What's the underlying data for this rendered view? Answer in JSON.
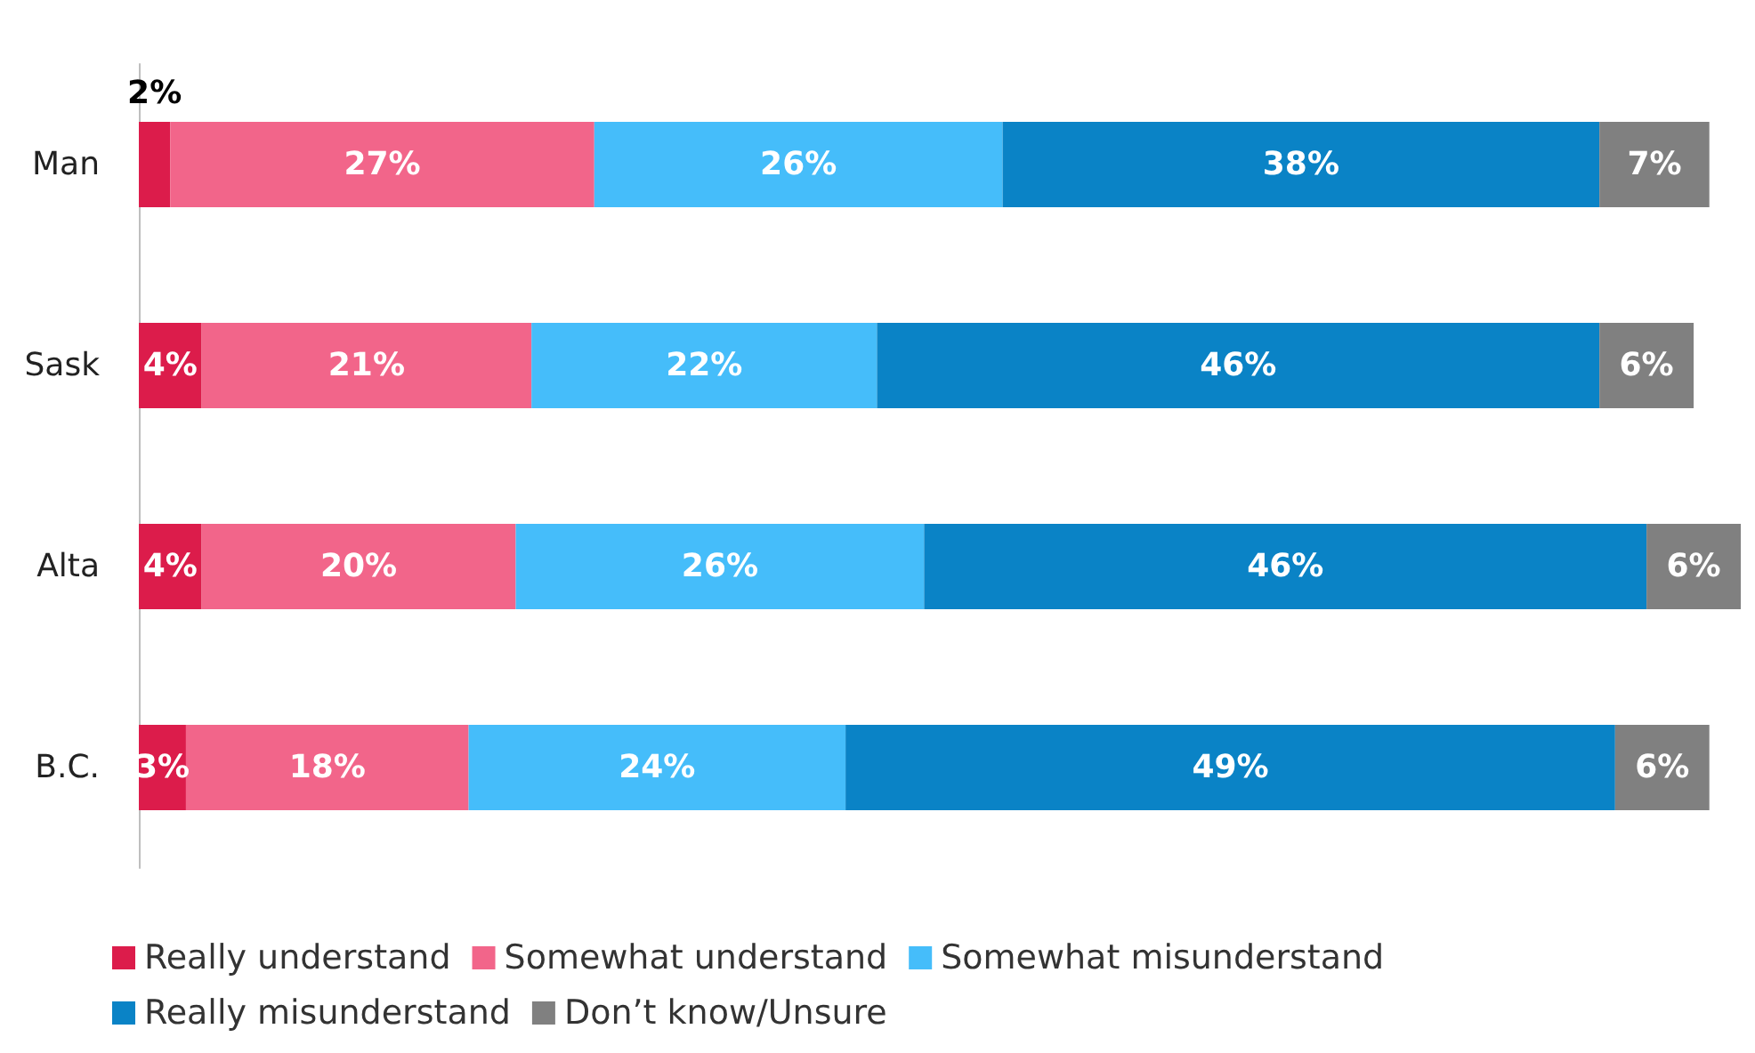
{
  "chart_data": {
    "type": "bar",
    "orientation": "horizontal",
    "stacked": true,
    "categories": [
      "Man",
      "Sask",
      "Alta",
      "B.C."
    ],
    "xlim": [
      0,
      102
    ],
    "tick_labels": "y",
    "legend": "bottom",
    "series": [
      {
        "name": "Really understand",
        "color": "#dc1c4b",
        "values": [
          2,
          4,
          4,
          3
        ],
        "value_labels": [
          "2%",
          "4%",
          "4%",
          "3%"
        ]
      },
      {
        "name": "Somewhat understand",
        "color": "#f2658a",
        "values": [
          27,
          21,
          20,
          18
        ],
        "value_labels": [
          "27%",
          "21%",
          "20%",
          "18%"
        ]
      },
      {
        "name": "Somewhat misunderstand",
        "color": "#45bdfa",
        "values": [
          26,
          22,
          26,
          24
        ],
        "value_labels": [
          "26%",
          "22%",
          "26%",
          "24%"
        ]
      },
      {
        "name": "Really misunderstand",
        "color": "#0a83c6",
        "values": [
          38,
          46,
          46,
          49
        ],
        "value_labels": [
          "38%",
          "46%",
          "46%",
          "49%"
        ]
      },
      {
        "name": "Don’t know/Unsure",
        "color": "#808080",
        "values": [
          7,
          6,
          6,
          6
        ],
        "value_labels": [
          "7%",
          "6%",
          "6%",
          "6%"
        ]
      }
    ]
  }
}
